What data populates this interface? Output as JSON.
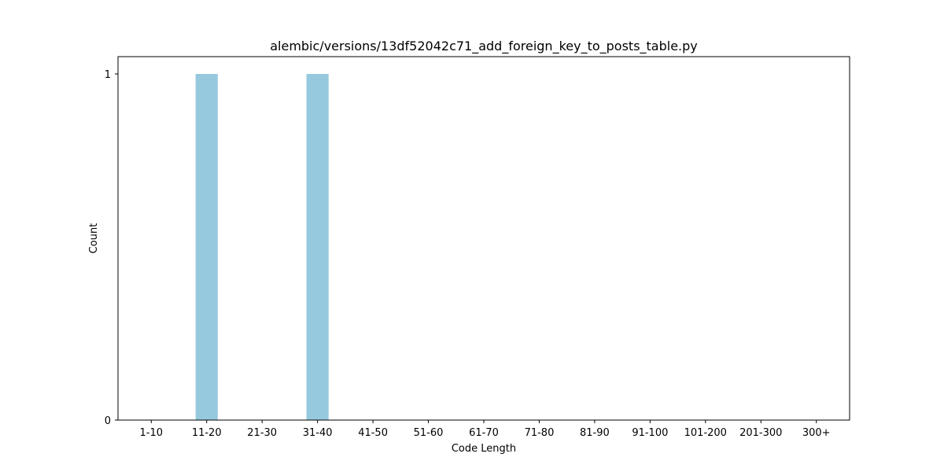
{
  "chart_data": {
    "type": "bar",
    "title": "alembic/versions/13df52042c71_add_foreign_key_to_posts_table.py",
    "xlabel": "Code Length",
    "ylabel": "Count",
    "categories": [
      "1-10",
      "11-20",
      "21-30",
      "31-40",
      "41-50",
      "51-60",
      "61-70",
      "71-80",
      "81-90",
      "91-100",
      "101-200",
      "201-300",
      "300+"
    ],
    "values": [
      0,
      1,
      0,
      1,
      0,
      0,
      0,
      0,
      0,
      0,
      0,
      0,
      0
    ],
    "ylim": [
      0,
      1.05
    ],
    "yticks": [
      0,
      1
    ],
    "bar_color": "#96c9de",
    "grid": false,
    "legend": "none"
  }
}
